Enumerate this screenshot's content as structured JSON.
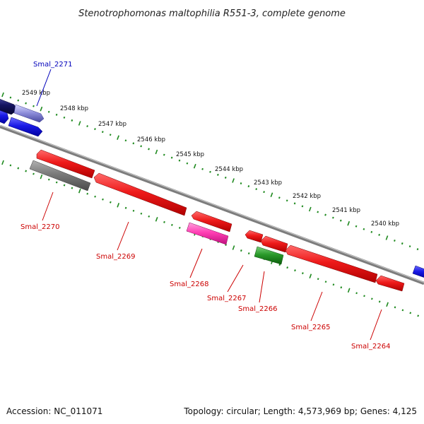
{
  "title": "Stenotrophomonas maltophilia R551-3, complete genome",
  "footer": {
    "accession": "Accession: NC_011071",
    "summary": "Topology: circular; Length: 4,573,969 bp; Genes: 4,125"
  },
  "colors": {
    "backbone": "#8a8a8a",
    "tick_dots": "#1f8a1f",
    "gene_red": "#e8141a",
    "gene_blue": "#1a22e6",
    "gene_darkblue": "#16166e",
    "gene_gray": "#7a7a7a",
    "gene_pink": "#ff3fb4",
    "gene_green": "#2a9a2a",
    "label_red": "#cc0000",
    "label_blue": "#0000bb"
  },
  "ticks": [
    {
      "label": "2549 kbp"
    },
    {
      "label": "2548 kbp"
    },
    {
      "label": "2547 kbp"
    },
    {
      "label": "2546 kbp"
    },
    {
      "label": "2545 kbp"
    },
    {
      "label": "2544 kbp"
    },
    {
      "label": "2543 kbp"
    },
    {
      "label": "2542 kbp"
    },
    {
      "label": "2541 kbp"
    },
    {
      "label": "2540 kbp"
    }
  ],
  "genes": [
    {
      "label": "Smal_2271",
      "color": "blue"
    },
    {
      "label": "Smal_2270",
      "color": "red"
    },
    {
      "label": "Smal_2269",
      "color": "red"
    },
    {
      "label": "Smal_2268",
      "color": "red"
    },
    {
      "label": "Smal_2267",
      "color": "red"
    },
    {
      "label": "Smal_2266",
      "color": "red"
    },
    {
      "label": "Smal_2265",
      "color": "red"
    },
    {
      "label": "Smal_2264",
      "color": "red"
    }
  ]
}
